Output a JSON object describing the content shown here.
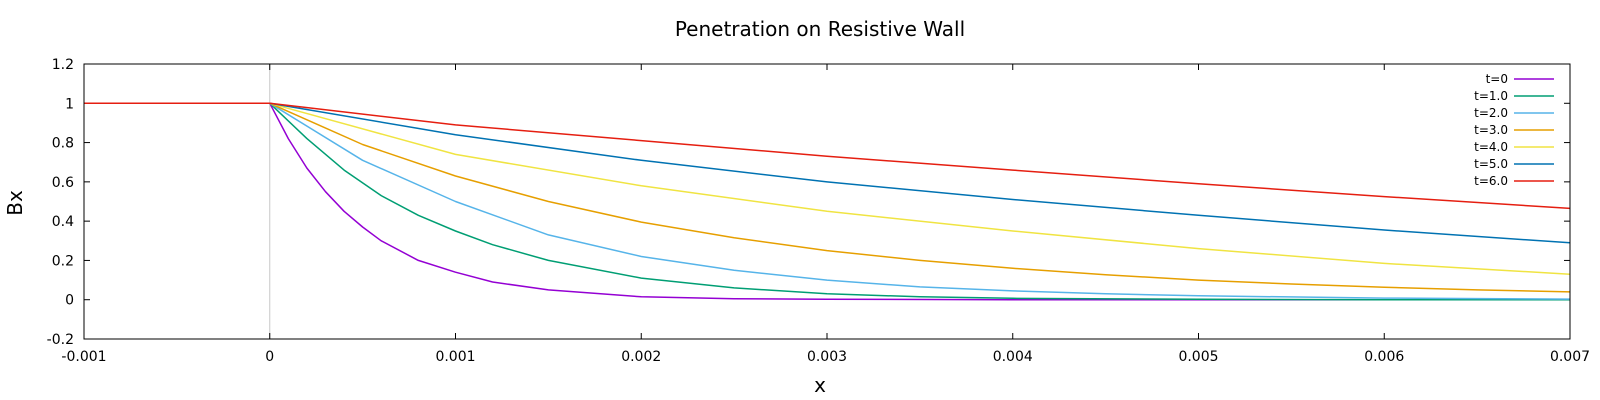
{
  "chart_data": {
    "type": "line",
    "title": "Penetration on Resistive Wall",
    "xlabel": "x",
    "ylabel": "Bx",
    "xlim": [
      -0.001,
      0.007
    ],
    "ylim": [
      -0.2,
      1.2
    ],
    "x_ticks": [
      "-0.001",
      "0",
      "0.001",
      "0.002",
      "0.003",
      "0.004",
      "0.005",
      "0.006",
      "0.007"
    ],
    "y_ticks": [
      "-0.2",
      "0",
      "0.2",
      "0.4",
      "0.6",
      "0.8",
      "1",
      "1.2"
    ],
    "grid": false,
    "legend_position": "top-right",
    "series": [
      {
        "name": "t=0",
        "color": "#9400d3",
        "x": [
          -0.001,
          0,
          0.0001,
          0.0002,
          0.0003,
          0.0004,
          0.0005,
          0.0006,
          0.0008,
          0.001,
          0.0012,
          0.0015,
          0.002,
          0.0025,
          0.003,
          0.004,
          0.005,
          0.006,
          0.007
        ],
        "y": [
          1,
          1,
          0.82,
          0.67,
          0.55,
          0.45,
          0.37,
          0.3,
          0.2,
          0.14,
          0.09,
          0.05,
          0.015,
          0.005,
          0.002,
          0,
          0,
          0,
          0
        ]
      },
      {
        "name": "t=1.0",
        "color": "#009e73",
        "x": [
          -0.001,
          0,
          0.0002,
          0.0004,
          0.0006,
          0.0008,
          0.001,
          0.0012,
          0.0015,
          0.002,
          0.0025,
          0.003,
          0.0035,
          0.004,
          0.005,
          0.006,
          0.007
        ],
        "y": [
          1,
          1,
          0.82,
          0.66,
          0.53,
          0.43,
          0.35,
          0.28,
          0.2,
          0.11,
          0.06,
          0.03,
          0.015,
          0.007,
          0.002,
          0,
          0
        ]
      },
      {
        "name": "t=2.0",
        "color": "#56b4e9",
        "x": [
          -0.001,
          0,
          0.0005,
          0.001,
          0.0015,
          0.002,
          0.0025,
          0.003,
          0.0035,
          0.004,
          0.0045,
          0.005,
          0.006,
          0.007
        ],
        "y": [
          1,
          1,
          0.71,
          0.5,
          0.33,
          0.22,
          0.15,
          0.1,
          0.065,
          0.045,
          0.03,
          0.02,
          0.008,
          0.003
        ]
      },
      {
        "name": "t=3.0",
        "color": "#e69f00",
        "x": [
          -0.001,
          0,
          0.0005,
          0.001,
          0.0015,
          0.002,
          0.0025,
          0.003,
          0.0035,
          0.004,
          0.0045,
          0.005,
          0.0055,
          0.006,
          0.0065,
          0.007
        ],
        "y": [
          1,
          1,
          0.79,
          0.63,
          0.5,
          0.395,
          0.315,
          0.25,
          0.2,
          0.16,
          0.127,
          0.1,
          0.08,
          0.063,
          0.05,
          0.04
        ]
      },
      {
        "name": "t=4.0",
        "color": "#f0e442",
        "x": [
          -0.001,
          0,
          0.001,
          0.002,
          0.003,
          0.004,
          0.005,
          0.006,
          0.007
        ],
        "y": [
          1,
          1,
          0.74,
          0.58,
          0.45,
          0.35,
          0.26,
          0.185,
          0.13
        ]
      },
      {
        "name": "t=5.0",
        "color": "#0072b2",
        "x": [
          -0.001,
          0,
          0.001,
          0.002,
          0.003,
          0.004,
          0.005,
          0.006,
          0.007
        ],
        "y": [
          1,
          1,
          0.84,
          0.71,
          0.6,
          0.51,
          0.43,
          0.355,
          0.29
        ]
      },
      {
        "name": "t=6.0",
        "color": "#e51e10",
        "x": [
          -0.001,
          0,
          0.001,
          0.002,
          0.003,
          0.004,
          0.005,
          0.006,
          0.007
        ],
        "y": [
          1,
          1,
          0.89,
          0.81,
          0.73,
          0.66,
          0.59,
          0.525,
          0.465
        ]
      }
    ]
  }
}
